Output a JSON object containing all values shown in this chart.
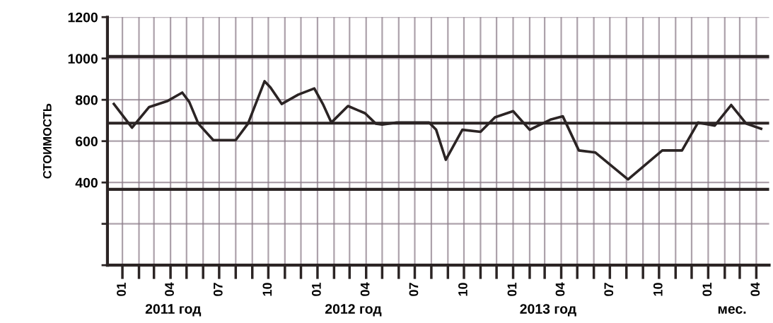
{
  "chart_data": {
    "type": "line",
    "ylabel": "СТОИМОСТЬ",
    "series": [
      {
        "color": "#2b2424",
        "x": [
          "2010-12-16",
          "2011-01-19",
          "2011-02-20",
          "2011-03-27",
          "2011-04-23",
          "2011-05-06",
          "2011-05-23",
          "2011-06-20",
          "2011-08-01",
          "2011-08-24",
          "2011-09-24",
          "2011-10-05",
          "2011-10-26",
          "2011-11-26",
          "2011-12-26",
          "2012-01-11",
          "2012-01-27",
          "2012-02-27",
          "2012-03-30",
          "2012-04-19",
          "2012-05-01",
          "2012-05-28",
          "2012-07-28",
          "2012-08-10",
          "2012-08-28",
          "2012-09-28",
          "2012-11-01",
          "2012-11-28",
          "2013-01-01",
          "2013-02-01",
          "2013-03-13",
          "2013-04-04",
          "2013-05-04",
          "2013-06-04",
          "2013-08-04",
          "2013-10-07",
          "2013-11-13",
          "2013-12-13",
          "2014-01-13",
          "2014-02-13",
          "2014-03-13",
          "2014-04-10"
        ],
        "values": [
          780,
          665,
          765,
          795,
          835,
          790,
          685,
          605,
          605,
          685,
          890,
          860,
          780,
          825,
          855,
          780,
          690,
          770,
          735,
          685,
          680,
          690,
          690,
          655,
          510,
          655,
          645,
          715,
          745,
          655,
          705,
          720,
          555,
          545,
          415,
          555,
          555,
          690,
          675,
          775,
          685,
          660
        ]
      }
    ],
    "xlim": [
      "2010-12-04",
      "2014-04-25"
    ],
    "xticks": [
      {
        "value": "2011-01",
        "label": "01"
      },
      {
        "value": "2011-02",
        "label": null
      },
      {
        "value": "2011-03",
        "label": null
      },
      {
        "value": "2011-04",
        "label": "04"
      },
      {
        "value": "2011-05",
        "label": null
      },
      {
        "value": "2011-06",
        "label": null
      },
      {
        "value": "2011-07",
        "label": "07"
      },
      {
        "value": "2011-08",
        "label": null
      },
      {
        "value": "2011-09",
        "label": null
      },
      {
        "value": "2011-10",
        "label": "10"
      },
      {
        "value": "2011-11",
        "label": null
      },
      {
        "value": "2011-12",
        "label": null
      },
      {
        "value": "2012-01",
        "label": "01"
      },
      {
        "value": "2012-02",
        "label": null
      },
      {
        "value": "2012-03",
        "label": null
      },
      {
        "value": "2012-04",
        "label": "04"
      },
      {
        "value": "2012-05",
        "label": null
      },
      {
        "value": "2012-06",
        "label": null
      },
      {
        "value": "2012-07",
        "label": "07"
      },
      {
        "value": "2012-08",
        "label": null
      },
      {
        "value": "2012-09",
        "label": null
      },
      {
        "value": "2012-10",
        "label": "10"
      },
      {
        "value": "2012-11",
        "label": null
      },
      {
        "value": "2012-12",
        "label": null
      },
      {
        "value": "2013-01",
        "label": "01"
      },
      {
        "value": "2013-02",
        "label": null
      },
      {
        "value": "2013-03",
        "label": null
      },
      {
        "value": "2013-04",
        "label": "04"
      },
      {
        "value": "2013-05",
        "label": null
      },
      {
        "value": "2013-06",
        "label": null
      },
      {
        "value": "2013-07",
        "label": "07"
      },
      {
        "value": "2013-08",
        "label": null
      },
      {
        "value": "2013-09",
        "label": null
      },
      {
        "value": "2013-10",
        "label": "10"
      },
      {
        "value": "2013-11",
        "label": null
      },
      {
        "value": "2013-12",
        "label": null
      },
      {
        "value": "2014-01",
        "label": "01"
      },
      {
        "value": "2014-02",
        "label": null
      },
      {
        "value": "2014-03",
        "label": null
      },
      {
        "value": "2014-04",
        "label": "04"
      }
    ],
    "ylim": [
      0,
      1200
    ],
    "yticks": [
      {
        "value": 0,
        "label": null
      },
      {
        "value": 200,
        "label": null
      },
      400,
      600,
      800,
      1000,
      1200
    ],
    "ref_lines": [
      {
        "axis": "y",
        "value": 1010,
        "color": "#2b2424"
      },
      {
        "axis": "y",
        "value": 687,
        "color": "#2b2424"
      },
      {
        "axis": "y",
        "value": 367,
        "color": "#2b2424"
      }
    ],
    "grid": true,
    "annotations": [
      "2011 год",
      "2012 год",
      "2013 год",
      "мес."
    ]
  }
}
